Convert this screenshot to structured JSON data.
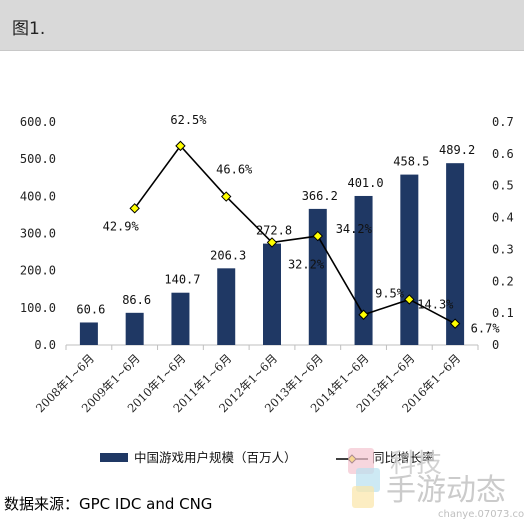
{
  "header": {
    "title": "图1."
  },
  "source": "数据来源：GPC IDC and CNG",
  "watermark": {
    "text": "手游动态",
    "subtext": "chanye.07073.com"
  },
  "colors": {
    "bar": "#1f3864",
    "line": "#000000",
    "marker": "#ffff00",
    "header_bg": "#d9d9d9"
  },
  "chart_data": {
    "type": "bar",
    "title": "",
    "xlabel": "",
    "ylabel": "",
    "categories": [
      "2008年1~6月",
      "2009年1~6月",
      "2010年1~6月",
      "2011年1~6月",
      "2012年1~6月",
      "2013年1~6月",
      "2014年1~6月",
      "2015年1~6月",
      "2016年1~6月"
    ],
    "ylim": [
      0,
      600
    ],
    "y_ticks": [
      "0.0",
      "100.0",
      "200.0",
      "300.0",
      "400.0",
      "500.0",
      "600.0"
    ],
    "y2lim": [
      0,
      0.7
    ],
    "y2_ticks": [
      "0",
      "0.1",
      "0.2",
      "0.3",
      "0.4",
      "0.5",
      "0.6",
      "0.7"
    ],
    "legend_position": "bottom",
    "grid": false,
    "series": [
      {
        "name": "中国游戏用户规模（百万人）",
        "type": "bar",
        "axis": "left",
        "values": [
          60.6,
          86.6,
          140.7,
          206.3,
          272.8,
          366.2,
          401.0,
          458.5,
          489.2
        ],
        "labels": [
          "60.6",
          "86.6",
          "140.7",
          "206.3",
          "272.8",
          "366.2",
          "401.0",
          "458.5",
          "489.2"
        ]
      },
      {
        "name": "同比增长率",
        "type": "line",
        "axis": "right",
        "values": [
          null,
          0.429,
          0.625,
          0.466,
          0.322,
          0.342,
          0.095,
          0.143,
          0.067
        ],
        "labels": [
          "",
          "42.9%",
          "62.5%",
          "46.6%",
          "32.2%",
          "34.2%",
          "9.5%",
          "14.3%",
          "6.7%"
        ]
      }
    ]
  }
}
